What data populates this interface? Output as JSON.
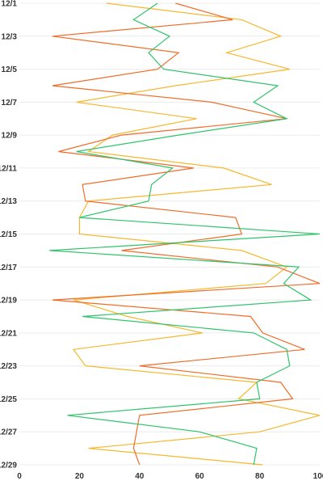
{
  "chart_data": {
    "type": "line",
    "orientation": "horizontal",
    "title": "",
    "xlabel": "",
    "ylabel": "",
    "xlim": [
      0,
      100
    ],
    "x_ticks": [
      0,
      20,
      40,
      60,
      80,
      100
    ],
    "y_tick_labels": [
      "12/1",
      "12/3",
      "12/5",
      "12/7",
      "12/9",
      "12/11",
      "12/13",
      "12/15",
      "12/17",
      "12/19",
      "12/21",
      "12/23",
      "12/25",
      "12/27",
      "12/29"
    ],
    "categories": [
      "12/1",
      "12/2",
      "12/3",
      "12/4",
      "12/5",
      "12/6",
      "12/7",
      "12/8",
      "12/9",
      "12/10",
      "12/11",
      "12/12",
      "12/13",
      "12/14",
      "12/15",
      "12/16",
      "12/17",
      "12/18",
      "12/19",
      "12/20",
      "12/21",
      "12/22",
      "12/23",
      "12/24",
      "12/25",
      "12/26",
      "12/27",
      "12/28",
      "12/29"
    ],
    "grid": true,
    "legend": "none",
    "series": [
      {
        "color": "#f5b82e",
        "values": [
          29,
          74,
          87,
          69,
          90,
          52,
          19,
          59,
          31,
          23,
          68,
          84,
          23,
          20,
          20,
          74,
          89,
          82,
          18,
          36,
          61,
          18,
          22,
          79,
          73,
          100,
          80,
          23,
          81
        ]
      },
      {
        "color": "#f06c28",
        "values": [
          52,
          71,
          11,
          53,
          46,
          11,
          64,
          89,
          34,
          13,
          58,
          21,
          22,
          72,
          74,
          34,
          86,
          100,
          11,
          77,
          81,
          95,
          40,
          87,
          91,
          40,
          39,
          38,
          40
        ]
      },
      {
        "color": "#2ec46a",
        "values": [
          46,
          38,
          50,
          43,
          48,
          86,
          78,
          89,
          53,
          19,
          51,
          44,
          43,
          20,
          100,
          10,
          93,
          88,
          97,
          21,
          78,
          89,
          90,
          79,
          80,
          16,
          60,
          79,
          78
        ]
      }
    ]
  }
}
